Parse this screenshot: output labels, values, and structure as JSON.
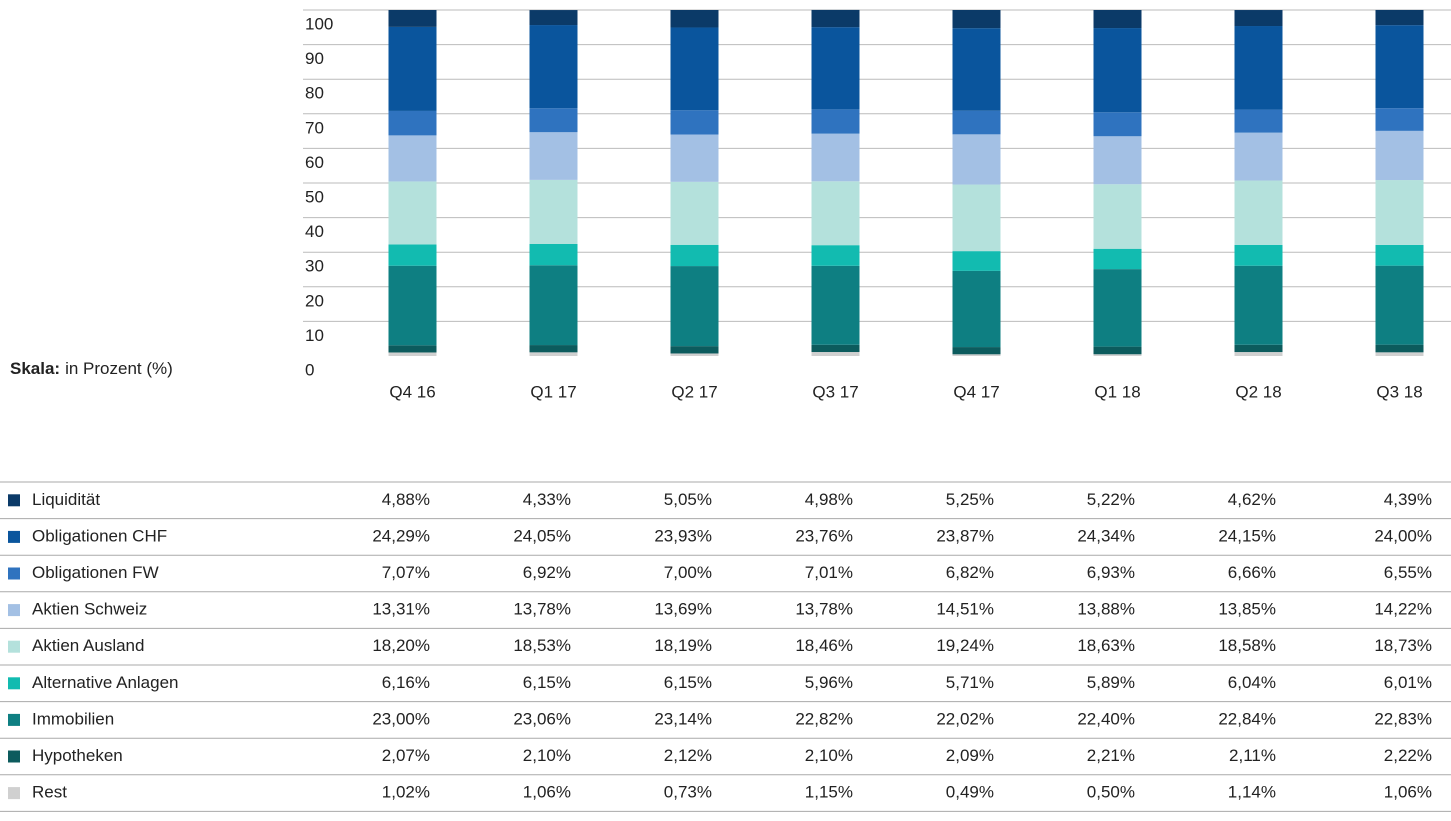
{
  "chart_data": {
    "type": "stacked_bar",
    "scale_title": "Skala:",
    "scale_text": "in Prozent (%)",
    "categories": [
      "Q4 16",
      "Q1 17",
      "Q2 17",
      "Q3 17",
      "Q4 17",
      "Q1 18",
      "Q2 18",
      "Q3 18"
    ],
    "ylim": [
      0,
      100
    ],
    "yticks": [
      0,
      10,
      20,
      30,
      40,
      50,
      60,
      70,
      80,
      90,
      100
    ],
    "grid": true,
    "series": [
      {
        "name": "Liquidität",
        "color": "#0b3a68",
        "values": [
          4.88,
          4.33,
          5.05,
          4.98,
          5.25,
          5.22,
          4.62,
          4.39
        ],
        "value_labels": [
          "4,88%",
          "4,33%",
          "5,05%",
          "4,98%",
          "5,25%",
          "5,22%",
          "4,62%",
          "4,39%"
        ]
      },
      {
        "name": "Obligationen CHF",
        "color": "#0a559d",
        "values": [
          24.29,
          24.05,
          23.93,
          23.76,
          23.87,
          24.34,
          24.15,
          24.0
        ],
        "value_labels": [
          "24,29%",
          "24,05%",
          "23,93%",
          "23,76%",
          "23,87%",
          "24,34%",
          "24,15%",
          "24,00%"
        ]
      },
      {
        "name": "Obligationen FW",
        "color": "#2f73bf",
        "values": [
          7.07,
          6.92,
          7.0,
          7.01,
          6.82,
          6.93,
          6.66,
          6.55
        ],
        "value_labels": [
          "7,07%",
          "6,92%",
          "7,00%",
          "7,01%",
          "6,82%",
          "6,93%",
          "6,66%",
          "6,55%"
        ]
      },
      {
        "name": "Aktien Schweiz",
        "color": "#a3c0e4",
        "values": [
          13.31,
          13.78,
          13.69,
          13.78,
          14.51,
          13.88,
          13.85,
          14.22
        ],
        "value_labels": [
          "13,31%",
          "13,78%",
          "13,69%",
          "13,78%",
          "14,51%",
          "13,88%",
          "13,85%",
          "14,22%"
        ]
      },
      {
        "name": "Aktien Ausland",
        "color": "#b4e1dc",
        "values": [
          18.2,
          18.53,
          18.19,
          18.46,
          19.24,
          18.63,
          18.58,
          18.73
        ],
        "value_labels": [
          "18,20%",
          "18,53%",
          "18,19%",
          "18,46%",
          "19,24%",
          "18,63%",
          "18,58%",
          "18,73%"
        ]
      },
      {
        "name": "Alternative Anlagen",
        "color": "#12bbb0",
        "values": [
          6.16,
          6.15,
          6.15,
          5.96,
          5.71,
          5.89,
          6.04,
          6.01
        ],
        "value_labels": [
          "6,16%",
          "6,15%",
          "6,15%",
          "5,96%",
          "5,71%",
          "5,89%",
          "6,04%",
          "6,01%"
        ]
      },
      {
        "name": "Immobilien",
        "color": "#0e7f82",
        "values": [
          23.0,
          23.06,
          23.14,
          22.82,
          22.02,
          22.4,
          22.84,
          22.83
        ],
        "value_labels": [
          "23,00%",
          "23,06%",
          "23,14%",
          "22,82%",
          "22,02%",
          "22,40%",
          "22,84%",
          "22,83%"
        ]
      },
      {
        "name": "Hypotheken",
        "color": "#0c5b5d",
        "values": [
          2.07,
          2.1,
          2.12,
          2.1,
          2.09,
          2.21,
          2.11,
          2.22
        ],
        "value_labels": [
          "2,07%",
          "2,10%",
          "2,12%",
          "2,10%",
          "2,09%",
          "2,21%",
          "2,11%",
          "2,22%"
        ]
      },
      {
        "name": "Rest",
        "color": "#d0d0d0",
        "values": [
          1.02,
          1.06,
          0.73,
          1.15,
          0.49,
          0.5,
          1.14,
          1.06
        ],
        "value_labels": [
          "1,02%",
          "1,06%",
          "0,73%",
          "1,15%",
          "0,49%",
          "0,50%",
          "1,14%",
          "1,06%"
        ]
      }
    ]
  }
}
